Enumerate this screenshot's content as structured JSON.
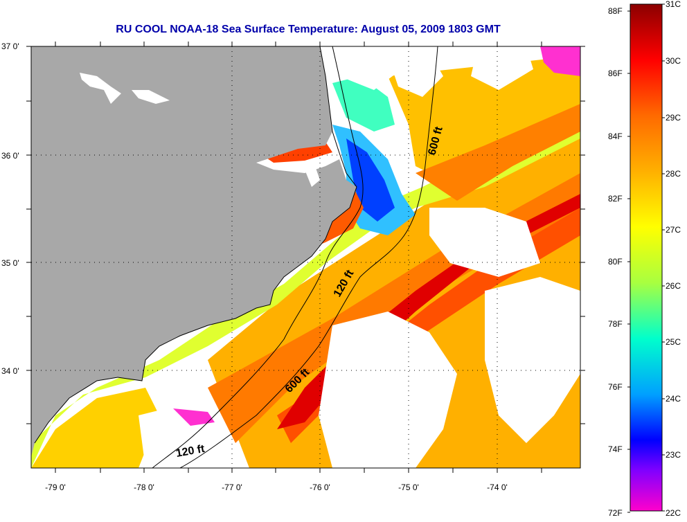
{
  "title": "RU COOL  NOAA-18  Sea Surface Temperature:  August 05, 2009 1803 GMT",
  "lat_labels": [
    "37 0'",
    "36 0'",
    "35 0'",
    "34 0'"
  ],
  "lon_labels": [
    "-79 0'",
    "-78 0'",
    "-77 0'",
    "-76 0'",
    "-75 0'",
    "-74 0'"
  ],
  "contour_labels": {
    "shelf_north": "600 ft",
    "shelf_south": "600 ft",
    "inner_north": "120 ft",
    "inner_south": "120 ft"
  },
  "colorbar": {
    "f_labels": [
      "88F",
      "86F",
      "84F",
      "82F",
      "80F",
      "78F",
      "76F",
      "74F",
      "72F"
    ],
    "c_labels": [
      "31C",
      "30C",
      "29C",
      "28C",
      "27C",
      "26C",
      "25C",
      "24C",
      "23C",
      "22C"
    ],
    "colors": [
      "#8b0000",
      "#ff0000",
      "#ff6a00",
      "#ffb000",
      "#ffff00",
      "#a8ff40",
      "#00ffcc",
      "#00a0ff",
      "#0000ff",
      "#8000ff",
      "#ff00cc"
    ]
  },
  "colors": {
    "land": "#a8a8a8",
    "title": "#0000aa",
    "no_data": "#ffffff"
  }
}
